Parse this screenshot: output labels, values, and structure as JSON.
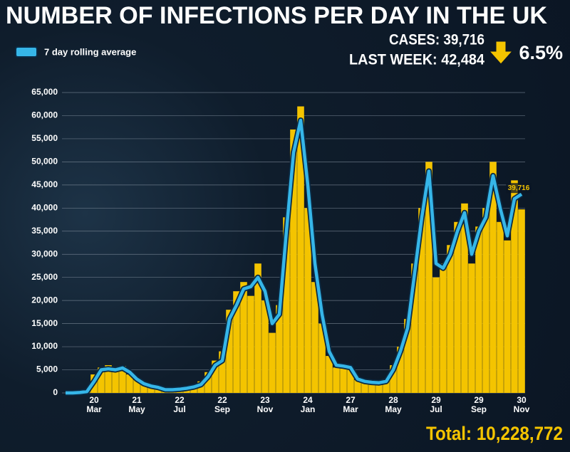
{
  "chart_data": {
    "type": "bar",
    "title": "NUMBER OF INFECTIONS PER DAY IN THE UK",
    "cases_text": "CASES: 39,716",
    "last_week_text": "LAST WEEK: 42,484",
    "change_text": "6.5%",
    "total_text": "Total: 10,228,772",
    "annotation": "39,716",
    "categories": [
      null,
      null,
      null,
      null,
      "20 Mar",
      null,
      null,
      null,
      null,
      null,
      "21 May",
      null,
      null,
      null,
      null,
      null,
      "22 Jul",
      null,
      null,
      null,
      null,
      null,
      "22 Sep",
      null,
      null,
      null,
      null,
      null,
      "23 Nov",
      null,
      null,
      null,
      null,
      null,
      "24 Jan",
      null,
      null,
      null,
      null,
      null,
      "27 Mar",
      null,
      null,
      null,
      null,
      null,
      "28 May",
      null,
      null,
      null,
      null,
      null,
      "29 Jul",
      null,
      null,
      null,
      null,
      null,
      "29 Sep",
      null,
      null,
      null,
      null,
      null,
      "30 Nov"
    ],
    "series": [
      {
        "color": "#f4c400",
        "values": [
          0,
          0,
          200,
          500,
          4000,
          5500,
          6000,
          4800,
          5800,
          4000,
          2800,
          1800,
          1400,
          1100,
          600,
          700,
          900,
          1100,
          1500,
          2500,
          4500,
          7000,
          9000,
          18000,
          22000,
          24000,
          21000,
          28000,
          20000,
          13000,
          19000,
          38000,
          57000,
          62000,
          40000,
          24000,
          15000,
          8000,
          5500,
          6000,
          5000,
          2800,
          2400,
          2200,
          2000,
          3000,
          6000,
          10000,
          16000,
          28000,
          40000,
          50000,
          25000,
          28000,
          32000,
          37000,
          41000,
          28000,
          36000,
          40000,
          50000,
          37000,
          33000,
          46000,
          39716
        ]
      },
      {
        "type": "line",
        "name": "7 day rolling average",
        "color": "#36b6e8",
        "values": [
          0,
          0,
          100,
          300,
          2500,
          5000,
          5200,
          5000,
          5400,
          4500,
          3000,
          2000,
          1500,
          1200,
          700,
          700,
          800,
          1000,
          1300,
          1800,
          3500,
          6000,
          7000,
          16000,
          19000,
          22500,
          23000,
          25000,
          22000,
          15000,
          17000,
          35000,
          52000,
          59000,
          45000,
          28000,
          17000,
          9000,
          6000,
          5800,
          5500,
          3000,
          2500,
          2300,
          2200,
          2500,
          5000,
          9000,
          14000,
          26000,
          38000,
          48000,
          28000,
          27000,
          30000,
          35000,
          39000,
          30000,
          35000,
          38000,
          47000,
          40000,
          34000,
          42000,
          43000
        ]
      }
    ],
    "ylim": [
      0,
      65000
    ],
    "yticks": [
      0,
      {
        "value": 5000,
        "label": "5,000"
      },
      {
        "value": 10000,
        "label": "10,000"
      },
      {
        "value": 15000,
        "label": "15,000"
      },
      {
        "value": 20000,
        "label": "20,000"
      },
      {
        "value": 25000,
        "label": "25,000"
      },
      {
        "value": 30000,
        "label": "30,000"
      },
      {
        "value": 35000,
        "label": "35,000"
      },
      {
        "value": 40000,
        "label": "40,000"
      },
      {
        "value": 45000,
        "label": "45,000"
      },
      {
        "value": 50000,
        "label": "50,000"
      },
      {
        "value": 55000,
        "label": "55,000"
      },
      {
        "value": 60000,
        "label": "60,000"
      },
      {
        "value": 65000,
        "label": "65,000"
      }
    ],
    "grid": true
  }
}
